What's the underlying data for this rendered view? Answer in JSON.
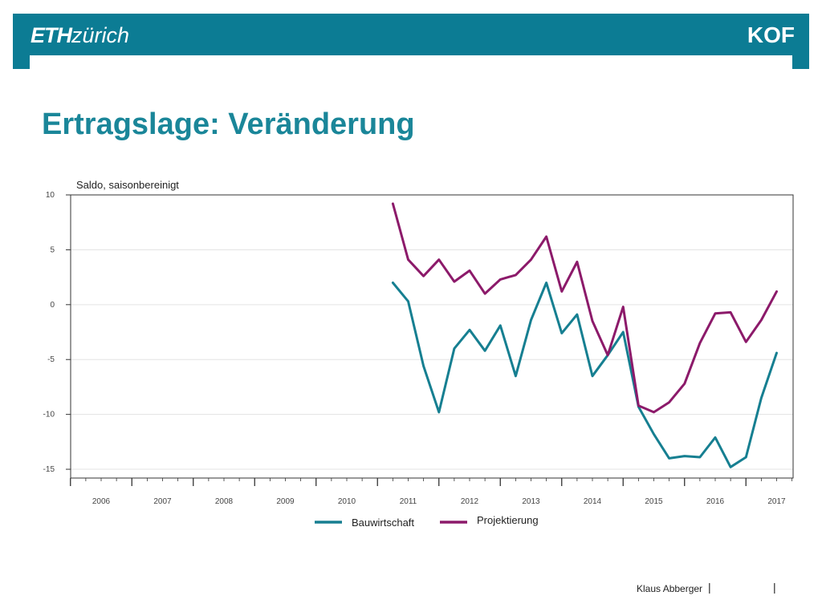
{
  "header": {
    "logo_left_bold": "ETH",
    "logo_left_light": "zürich",
    "logo_right": "KOF",
    "color": "#0c7c94"
  },
  "title": "Ertragslage: Veränderung",
  "footer": {
    "author": "Klaus Abberger",
    "separator": "|"
  },
  "chart_data": {
    "type": "line",
    "ylabel": "Saldo, saisonbereinigt",
    "ylim": [
      -15.8,
      10
    ],
    "yticks": [
      10,
      5,
      0,
      -5,
      -10,
      -15
    ],
    "ytick_labels": [
      "10",
      "5",
      "0",
      "-5",
      "-10",
      "-15"
    ],
    "xlim": [
      2006,
      2018
    ],
    "xticks": [
      2006,
      2007,
      2008,
      2009,
      2010,
      2011,
      2012,
      2013,
      2014,
      2015,
      2016,
      2017
    ],
    "xtick_labels": [
      "2006",
      "2007",
      "2008",
      "2009",
      "2010",
      "2011",
      "2012",
      "2013",
      "2014",
      "2015",
      "2016",
      "2017"
    ],
    "grid": true,
    "legend_position": "bottom",
    "x": [
      2010.75,
      2011.0,
      2011.25,
      2011.5,
      2011.75,
      2012.0,
      2012.25,
      2012.5,
      2012.75,
      2013.0,
      2013.25,
      2013.5,
      2013.75,
      2014.0,
      2014.25,
      2014.5,
      2014.75,
      2015.0,
      2015.25,
      2015.5,
      2015.75,
      2016.0,
      2016.25,
      2016.5,
      2016.75,
      2017.0
    ],
    "series": [
      {
        "name": "Bauwirtschaft",
        "color": "#167f91",
        "values": [
          2.0,
          0.3,
          -5.6,
          -9.8,
          -4.0,
          -2.3,
          -4.2,
          -1.9,
          -6.5,
          -1.4,
          2.0,
          -2.6,
          -0.9,
          -6.5,
          -4.6,
          -2.5,
          -9.3,
          -11.8,
          -14.0,
          -13.8,
          -13.9,
          -12.1,
          -14.8,
          -13.9,
          -8.5,
          -4.4
        ]
      },
      {
        "name": "Projektierung",
        "color": "#8c1a6a",
        "values": [
          9.2,
          4.1,
          2.6,
          4.1,
          2.1,
          3.1,
          1.0,
          2.3,
          2.7,
          4.1,
          6.2,
          1.2,
          3.9,
          -1.5,
          -4.6,
          -0.2,
          -9.2,
          -9.8,
          -8.9,
          -7.2,
          -3.5,
          -0.8,
          -0.7,
          -3.4,
          -1.4,
          1.2
        ]
      }
    ]
  }
}
